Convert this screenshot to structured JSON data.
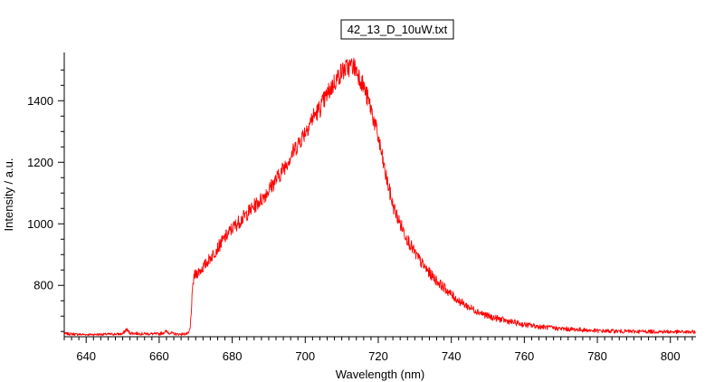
{
  "chart_data": {
    "type": "line",
    "title": "",
    "legend": {
      "label": "42_13_D_10uW.txt",
      "placement": "top-center"
    },
    "xlabel": "Wavelength (nm)",
    "ylabel": "Intensity / a.u.",
    "xlim": [
      634,
      807
    ],
    "ylim": [
      633,
      1545
    ],
    "xticks": [
      640,
      660,
      680,
      700,
      720,
      740,
      760,
      780,
      800
    ],
    "xtick_labels": [
      "640",
      "660",
      "680",
      "700",
      "720",
      "740",
      "760",
      "780",
      "800"
    ],
    "x_minor_step": 2,
    "yticks": [
      800,
      1000,
      1200,
      1400
    ],
    "ytick_labels": [
      "800",
      "1000",
      "1200",
      "1400"
    ],
    "grid": false,
    "series": [
      {
        "color": "#ff0000",
        "x": [
          634,
          640,
          645,
          650,
          651,
          652,
          655,
          660,
          662,
          663,
          665,
          668,
          668.5,
          669,
          669.5,
          670,
          672,
          675,
          678,
          680,
          683,
          685,
          688,
          690,
          693,
          695,
          698,
          700,
          702,
          704,
          706,
          708,
          710,
          712,
          713,
          714,
          715,
          716,
          718,
          720,
          722,
          724,
          726,
          728,
          730,
          732,
          734,
          736,
          738,
          740,
          742,
          745,
          748,
          750,
          755,
          760,
          765,
          770,
          775,
          780,
          785,
          790,
          795,
          800,
          807
        ],
        "y": [
          643,
          640,
          641,
          642,
          657,
          645,
          643,
          642,
          650,
          645,
          641,
          643,
          660,
          760,
          830,
          835,
          858,
          905,
          955,
          985,
          1020,
          1045,
          1080,
          1110,
          1160,
          1200,
          1260,
          1300,
          1345,
          1375,
          1420,
          1460,
          1495,
          1510,
          1515,
          1500,
          1475,
          1445,
          1375,
          1280,
          1160,
          1060,
          1000,
          950,
          905,
          870,
          840,
          815,
          793,
          770,
          750,
          728,
          711,
          700,
          685,
          672,
          665,
          659,
          656,
          652,
          651,
          650,
          650,
          649,
          648
        ]
      }
    ]
  }
}
